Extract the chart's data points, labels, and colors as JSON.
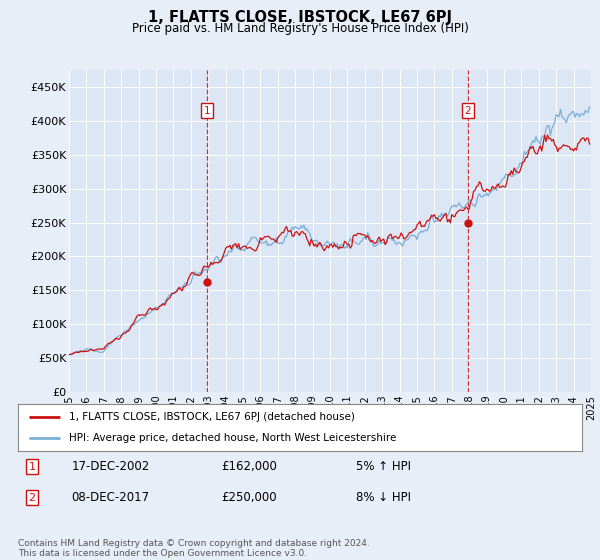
{
  "title": "1, FLATTS CLOSE, IBSTOCK, LE67 6PJ",
  "subtitle": "Price paid vs. HM Land Registry's House Price Index (HPI)",
  "background_color": "#e8eef7",
  "plot_bg_color": "#dce6f5",
  "ylim": [
    0,
    475000
  ],
  "yticks": [
    0,
    50000,
    100000,
    150000,
    200000,
    250000,
    300000,
    350000,
    400000,
    450000
  ],
  "ytick_labels": [
    "£0",
    "£50K",
    "£100K",
    "£150K",
    "£200K",
    "£250K",
    "£300K",
    "£350K",
    "£400K",
    "£450K"
  ],
  "sale1_date": "17-DEC-2002",
  "sale1_price": 162000,
  "sale1_pct": "5% ↑ HPI",
  "sale1_x": 2002.95,
  "sale2_date": "08-DEC-2017",
  "sale2_price": 250000,
  "sale2_x": 2017.93,
  "sale2_pct": "8% ↓ HPI",
  "hpi_line_color": "#7aafd4",
  "price_line_color": "#cc1111",
  "vline_color": "#cc1111",
  "legend_label1": "1, FLATTS CLOSE, IBSTOCK, LE67 6PJ (detached house)",
  "legend_label2": "HPI: Average price, detached house, North West Leicestershire",
  "footnote": "Contains HM Land Registry data © Crown copyright and database right 2024.\nThis data is licensed under the Open Government Licence v3.0.",
  "xstart": 1995,
  "xend": 2025
}
